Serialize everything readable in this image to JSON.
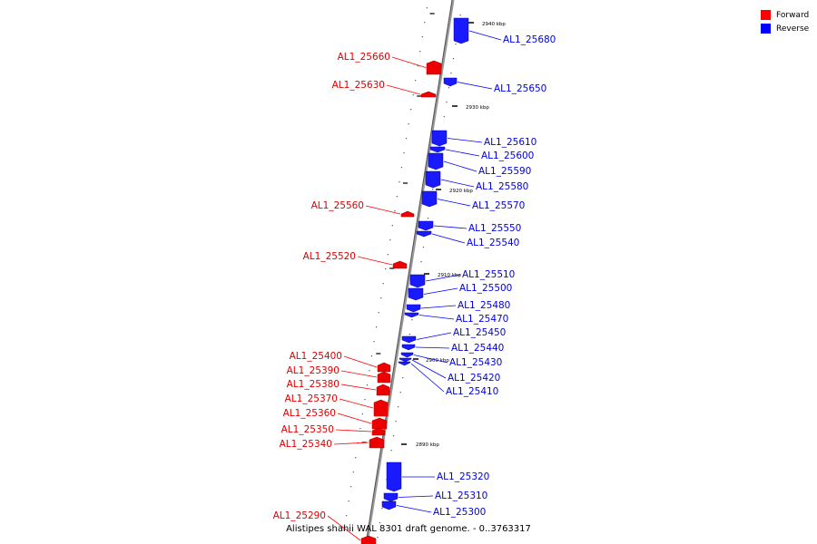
{
  "caption": "Alistipes shahii WAL 8301 draft genome. - 0..3763317",
  "legend": [
    {
      "label": "Forward",
      "color": "#ff0000"
    },
    {
      "label": "Reverse",
      "color": "#0000ff"
    }
  ],
  "kbp_markers": [
    "2940 kbp",
    "2930 kbp",
    "2920 kbp",
    "2910 kbp",
    "2900 kbp",
    "2890 kbp"
  ],
  "forward_genes": [
    "AL1_25660",
    "AL1_25630",
    "AL1_25560",
    "AL1_25520",
    "AL1_25400",
    "AL1_25390",
    "AL1_25380",
    "AL1_25370",
    "AL1_25360",
    "AL1_25350",
    "AL1_25340",
    "AL1_25290"
  ],
  "reverse_genes": [
    "AL1_25680",
    "AL1_25650",
    "AL1_25610",
    "AL1_25600",
    "AL1_25590",
    "AL1_25580",
    "AL1_25570",
    "AL1_25550",
    "AL1_25540",
    "AL1_25510",
    "AL1_25500",
    "AL1_25480",
    "AL1_25470",
    "AL1_25450",
    "AL1_25440",
    "AL1_25430",
    "AL1_25420",
    "AL1_25410",
    "AL1_25320",
    "AL1_25310",
    "AL1_25300"
  ]
}
